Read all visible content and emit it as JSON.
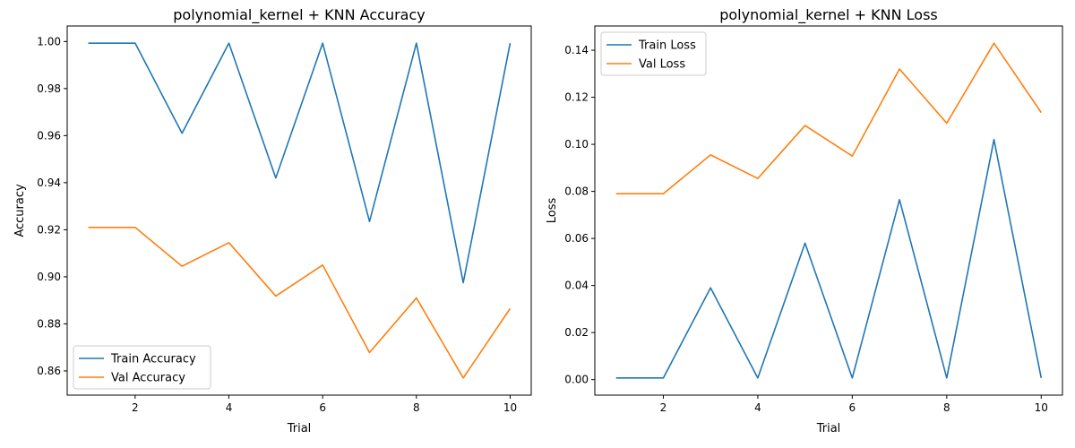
{
  "chart_data": [
    {
      "type": "line",
      "title": "polynomial_kernel + KNN Accuracy",
      "xlabel": "Trial",
      "ylabel": "Accuracy",
      "x": [
        1,
        2,
        3,
        4,
        5,
        6,
        7,
        8,
        9,
        10
      ],
      "xlim": [
        0.55,
        10.45
      ],
      "ylim": [
        0.8497,
        1.0066
      ],
      "xticks": [
        2,
        4,
        6,
        8,
        10
      ],
      "yticks": [
        0.86,
        0.88,
        0.9,
        0.92,
        0.94,
        0.96,
        0.98,
        1.0
      ],
      "ytick_decimals": 2,
      "grid": false,
      "legend_position": "lower-left",
      "series": [
        {
          "name": "Train Accuracy",
          "color": "#1f77b4",
          "values": [
            0.9993,
            0.9993,
            0.961,
            0.9993,
            0.942,
            0.9993,
            0.9235,
            0.9993,
            0.8975,
            0.9993
          ]
        },
        {
          "name": "Val Accuracy",
          "color": "#ff7f0e",
          "values": [
            0.921,
            0.921,
            0.9045,
            0.9145,
            0.8918,
            0.905,
            0.8678,
            0.891,
            0.857,
            0.8865
          ]
        }
      ]
    },
    {
      "type": "line",
      "title": "polynomial_kernel + KNN Loss",
      "xlabel": "Trial",
      "ylabel": "Loss",
      "x": [
        1,
        2,
        3,
        4,
        5,
        6,
        7,
        8,
        9,
        10
      ],
      "xlim": [
        0.55,
        10.45
      ],
      "ylim": [
        -0.0066,
        0.1503
      ],
      "xticks": [
        2,
        4,
        6,
        8,
        10
      ],
      "yticks": [
        0.0,
        0.02,
        0.04,
        0.06,
        0.08,
        0.1,
        0.12,
        0.14
      ],
      "ytick_decimals": 2,
      "grid": false,
      "legend_position": "upper-left",
      "series": [
        {
          "name": "Train Loss",
          "color": "#1f77b4",
          "values": [
            0.0007,
            0.0007,
            0.039,
            0.0007,
            0.058,
            0.0007,
            0.0765,
            0.0007,
            0.102,
            0.0007
          ]
        },
        {
          "name": "Val Loss",
          "color": "#ff7f0e",
          "values": [
            0.079,
            0.079,
            0.0955,
            0.0855,
            0.108,
            0.095,
            0.132,
            0.109,
            0.143,
            0.1135
          ]
        }
      ]
    }
  ]
}
